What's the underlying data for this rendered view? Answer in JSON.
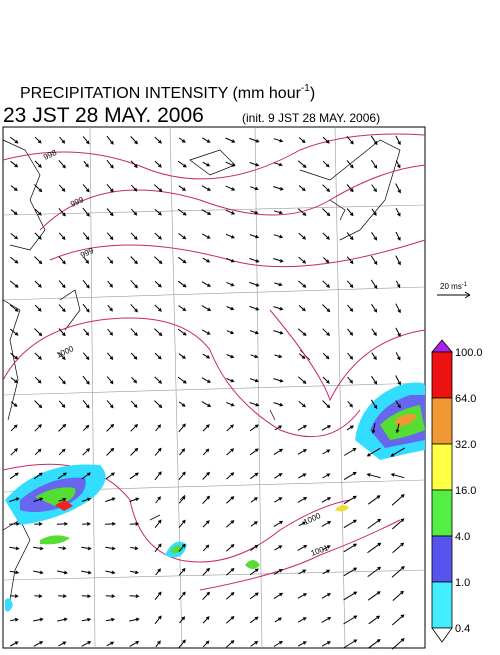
{
  "header": {
    "title": "PRECIPITATION INTENSITY (mm hour",
    "title_sup": "-1",
    "title_end": ")",
    "time": "23 JST 28 MAY. 2006",
    "init": "(init. 9 JST 28 MAY. 2006)"
  },
  "vector_reference": {
    "label": "20 ms",
    "sup": "-1"
  },
  "colorbar": {
    "labels": [
      "100.0",
      "64.0",
      "32.0",
      "16.0",
      "4.0",
      "1.0",
      "0.4"
    ]
  },
  "isobars": {
    "labels": [
      "998",
      "999",
      "999",
      "1000",
      "1000",
      "1001"
    ]
  }
}
